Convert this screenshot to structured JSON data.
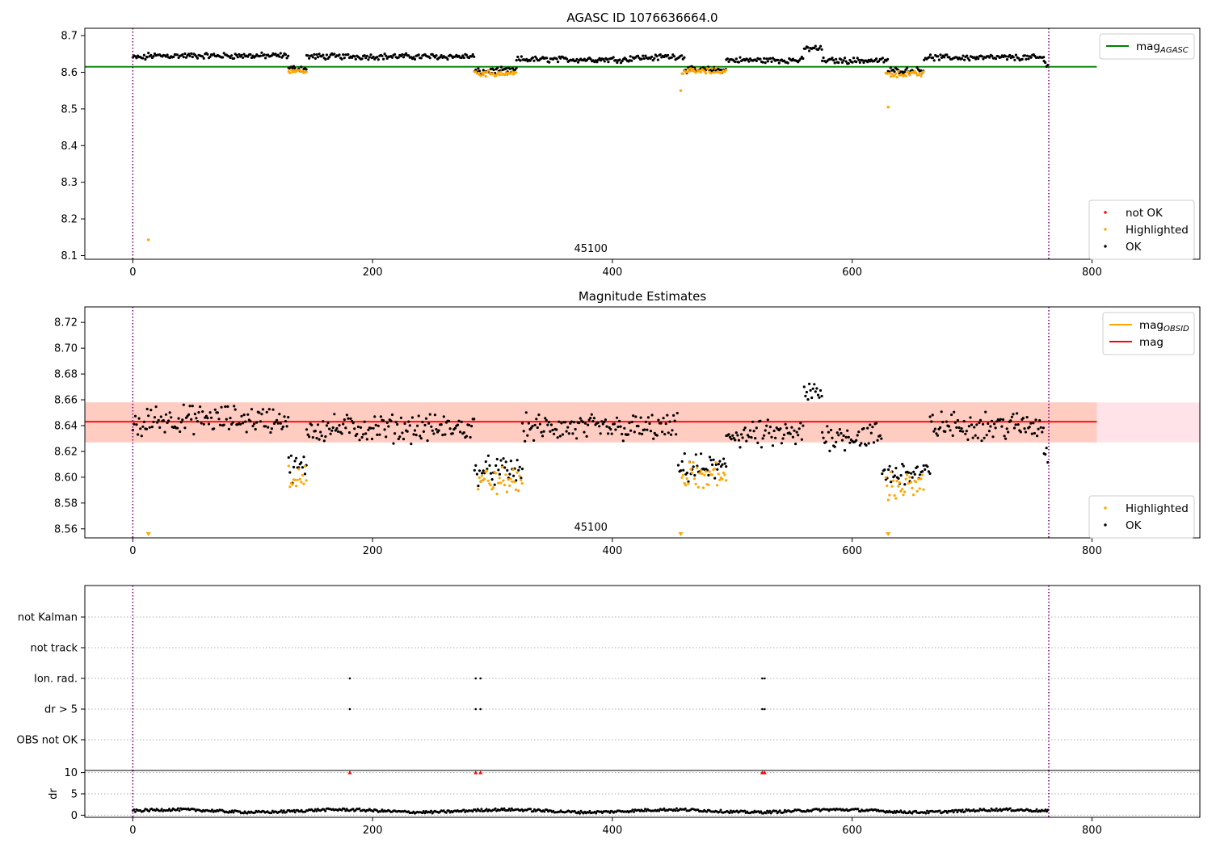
{
  "chart_data": [
    {
      "type": "scatter",
      "title": "AGASC ID 1076636664.0",
      "xlim": [
        -40,
        890
      ],
      "ylim": [
        8.09,
        8.72
      ],
      "xticks": [
        "0",
        "200",
        "400",
        "600",
        "800"
      ],
      "yticks": [
        "8.1",
        "8.2",
        "8.3",
        "8.4",
        "8.5",
        "8.6",
        "8.7"
      ],
      "obsid_label": "45100",
      "reference_lines": [
        {
          "name": "mag",
          "subscript": "AGASC",
          "y": 8.615,
          "x_range": [
            -40,
            804
          ],
          "color": "#008000"
        }
      ],
      "vlines": [
        0,
        764
      ],
      "legend_upper": {
        "position": "top-right",
        "entries": [
          {
            "name": "mag",
            "subscript": "AGASC",
            "color": "#008000"
          }
        ]
      },
      "legend_lower": {
        "position": "bottom-right",
        "entries": [
          {
            "name": "not OK",
            "color": "#ff0000"
          },
          {
            "name": "Highlighted",
            "color": "#ffa500"
          },
          {
            "name": "OK",
            "color": "#000000"
          }
        ]
      },
      "series": [
        {
          "name": "OK",
          "color": "#000000",
          "segments": [
            [
              0,
              12,
              8.64
            ],
            [
              12,
              130,
              8.645
            ],
            [
              130,
              145,
              8.61
            ],
            [
              145,
              285,
              8.643
            ],
            [
              285,
              300,
              8.602
            ],
            [
              300,
              320,
              8.605
            ],
            [
              320,
              415,
              8.635
            ],
            [
              415,
              440,
              8.64
            ],
            [
              440,
              460,
              8.643
            ],
            [
              460,
              495,
              8.607
            ],
            [
              495,
              560,
              8.633
            ],
            [
              560,
              575,
              8.665
            ],
            [
              575,
              630,
              8.632
            ],
            [
              630,
              660,
              8.605
            ],
            [
              660,
              760,
              8.64
            ],
            [
              760,
              764,
              8.625
            ]
          ]
        },
        {
          "name": "Highlighted",
          "color": "#ffa500",
          "segments": [
            [
              130,
              145,
              8.603
            ],
            [
              285,
              320,
              8.597
            ],
            [
              458,
              495,
              8.603
            ],
            [
              628,
              660,
              8.595
            ]
          ],
          "points": [
            [
              13,
              8.143
            ],
            [
              457,
              8.55
            ],
            [
              630,
              8.505
            ]
          ]
        },
        {
          "name": "not OK",
          "color": "#ff0000",
          "points": []
        }
      ]
    },
    {
      "type": "scatter",
      "title": "Magnitude Estimates",
      "xlim": [
        -40,
        890
      ],
      "ylim": [
        8.553,
        8.732
      ],
      "xticks": [
        "0",
        "200",
        "400",
        "600",
        "800"
      ],
      "yticks": [
        "8.56",
        "8.58",
        "8.60",
        "8.62",
        "8.64",
        "8.66",
        "8.68",
        "8.70",
        "8.72"
      ],
      "obsid_label": "45100",
      "band_outer": {
        "y_range": [
          8.627,
          8.658
        ],
        "color": "#ffc0cb"
      },
      "band_inner": {
        "y_range": [
          8.627,
          8.658
        ],
        "x_range": [
          -40,
          804
        ],
        "color": "#ffa07a"
      },
      "reference_lines": [
        {
          "name": "mag",
          "y": 8.643,
          "x_range": [
            -40,
            804
          ],
          "color": "#ff0000"
        }
      ],
      "vlines": [
        0,
        764
      ],
      "legend_upper": {
        "position": "top-right",
        "entries": [
          {
            "name": "mag",
            "subscript": "OBSID",
            "color": "#ffa500"
          },
          {
            "name": "mag",
            "color": "#ff0000"
          }
        ]
      },
      "legend_lower": {
        "position": "bottom-right",
        "entries": [
          {
            "name": "Highlighted",
            "color": "#ffa500"
          },
          {
            "name": "OK",
            "color": "#000000"
          }
        ]
      },
      "series": [
        {
          "name": "OK",
          "color": "#000000",
          "segments": [
            [
              0,
              12,
              8.64
            ],
            [
              12,
              130,
              8.645
            ],
            [
              130,
              145,
              8.607
            ],
            [
              145,
              285,
              8.638
            ],
            [
              285,
              325,
              8.605
            ],
            [
              325,
              455,
              8.638
            ],
            [
              455,
              495,
              8.607
            ],
            [
              495,
              560,
              8.633
            ],
            [
              560,
              575,
              8.665
            ],
            [
              575,
              625,
              8.632
            ],
            [
              625,
              665,
              8.603
            ],
            [
              665,
              760,
              8.64
            ],
            [
              760,
              764,
              8.62
            ]
          ]
        },
        {
          "name": "Highlighted",
          "color": "#ffa500",
          "segments": [
            [
              130,
              145,
              8.601
            ],
            [
              288,
              325,
              8.597
            ],
            [
              458,
              495,
              8.601
            ],
            [
              628,
              660,
              8.593
            ]
          ],
          "markers_bottom": [
            13,
            457,
            630
          ]
        }
      ]
    },
    {
      "type": "scatter",
      "title": "",
      "xlim": [
        -40,
        890
      ],
      "categories": [
        "not Kalman",
        "not track",
        "Ion. rad.",
        "dr > 5",
        "OBS not OK"
      ],
      "vlines": [
        0,
        764
      ],
      "flag_points": {
        "Ion. rad.": [
          181,
          286,
          290,
          525,
          527
        ],
        "dr > 5": [
          181,
          286,
          290,
          525,
          527
        ]
      }
    },
    {
      "type": "scatter",
      "title": "",
      "ylabel": "dr",
      "xlim": [
        -40,
        890
      ],
      "ylim": [
        -0.5,
        10.5
      ],
      "xticks": [
        "0",
        "200",
        "400",
        "600",
        "800"
      ],
      "yticks": [
        "0",
        "5",
        "10"
      ],
      "vlines": [
        0,
        764
      ],
      "clipped_points": [
        181,
        286,
        290,
        525,
        527
      ],
      "series": [
        {
          "name": "dr",
          "color": "#000000",
          "level": 1.0
        }
      ]
    }
  ]
}
